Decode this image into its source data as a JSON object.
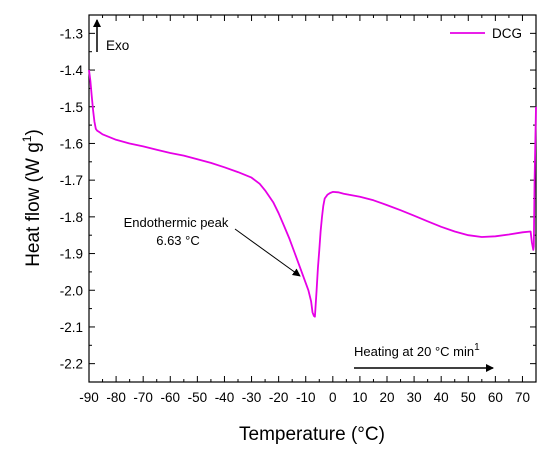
{
  "chart_data": {
    "type": "line",
    "title": "",
    "xlabel": "Temperature (°C)",
    "ylabel_main": "Heat flow (W g",
    "ylabel_sup": "­1",
    "ylabel_close": ")",
    "xlim": [
      -90,
      75
    ],
    "ylim": [
      -2.25,
      -1.25
    ],
    "x_ticks": [
      -90,
      -80,
      -70,
      -60,
      -50,
      -40,
      -30,
      -20,
      -10,
      0,
      10,
      20,
      30,
      40,
      50,
      60,
      70
    ],
    "y_ticks": [
      -1.3,
      -1.4,
      -1.5,
      -1.6,
      -1.7,
      -1.8,
      -1.9,
      -2.0,
      -2.1,
      -2.2
    ],
    "y_tick_labels": [
      "-1.3",
      "-1.4",
      "-1.5",
      "-1.6",
      "-1.7",
      "-1.8",
      "-1.9",
      "-2.0",
      "-2.1",
      "-2.2"
    ],
    "grid": false,
    "legend_position": "top-right",
    "series": [
      {
        "name": "DCG",
        "color": "#e600e6",
        "x": [
          -90,
          -89.5,
          -89,
          -88.5,
          -88,
          -87.5,
          -87,
          -86,
          -85,
          -80,
          -75,
          -70,
          -65,
          -60,
          -55,
          -50,
          -45,
          -40,
          -35,
          -30,
          -27,
          -25,
          -22,
          -20,
          -18,
          -16,
          -14,
          -12,
          -10,
          -9,
          -8,
          -7.5,
          -7,
          -6.6,
          -6,
          -5.5,
          -5,
          -4.5,
          -4,
          -3.5,
          -3,
          -2,
          -1,
          0,
          2,
          4,
          6,
          10,
          15,
          20,
          25,
          30,
          35,
          40,
          45,
          50,
          55,
          60,
          65,
          70,
          73,
          73.5,
          74,
          74.2,
          74.5,
          75
        ],
        "y": [
          -1.4,
          -1.43,
          -1.47,
          -1.51,
          -1.54,
          -1.56,
          -1.565,
          -1.57,
          -1.575,
          -1.59,
          -1.6,
          -1.608,
          -1.617,
          -1.626,
          -1.633,
          -1.643,
          -1.653,
          -1.665,
          -1.678,
          -1.693,
          -1.71,
          -1.728,
          -1.76,
          -1.79,
          -1.825,
          -1.86,
          -1.9,
          -1.94,
          -1.98,
          -2.0,
          -2.03,
          -2.06,
          -2.07,
          -2.072,
          -2.0,
          -1.94,
          -1.89,
          -1.84,
          -1.8,
          -1.77,
          -1.75,
          -1.74,
          -1.735,
          -1.732,
          -1.733,
          -1.737,
          -1.74,
          -1.745,
          -1.755,
          -1.768,
          -1.782,
          -1.797,
          -1.812,
          -1.827,
          -1.84,
          -1.85,
          -1.855,
          -1.853,
          -1.848,
          -1.842,
          -1.84,
          -1.87,
          -1.89,
          -1.88,
          -1.7,
          -1.5
        ]
      }
    ],
    "annotations": {
      "exo_label": "Exo",
      "peak_label_line1": "Endothermic peak",
      "peak_label_line2": "­6.63 °C",
      "peak_arrow_to": [
        -6.63,
        -2.07
      ],
      "heating_label_main": "Heating at 20 °C min",
      "heating_label_sup": "­1"
    }
  }
}
